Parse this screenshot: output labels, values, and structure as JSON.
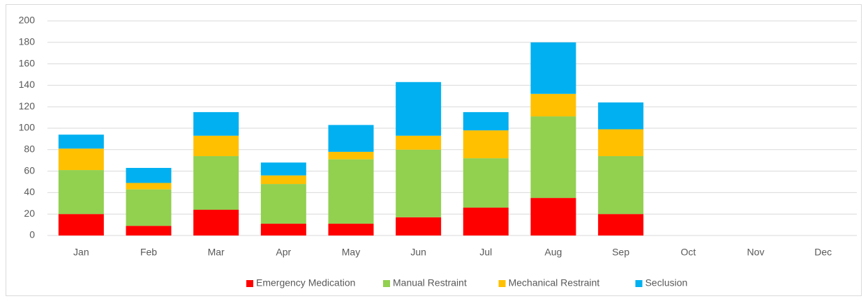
{
  "chart_data": {
    "type": "stacked_bar",
    "categories": [
      "Jan",
      "Feb",
      "Mar",
      "Apr",
      "May",
      "Jun",
      "Jul",
      "Aug",
      "Sep",
      "Oct",
      "Nov",
      "Dec"
    ],
    "series": [
      {
        "name": "Emergency Medication",
        "color": "#ff0000",
        "values": [
          20,
          9,
          24,
          11,
          11,
          17,
          26,
          35,
          20,
          null,
          null,
          null
        ]
      },
      {
        "name": "Manual Restraint",
        "color": "#92d050",
        "values": [
          41,
          34,
          50,
          37,
          60,
          63,
          46,
          76,
          54,
          null,
          null,
          null
        ]
      },
      {
        "name": "Mechanical Restraint",
        "color": "#ffc000",
        "values": [
          20,
          6,
          19,
          8,
          7,
          13,
          26,
          21,
          25,
          null,
          null,
          null
        ]
      },
      {
        "name": "Seclusion",
        "color": "#00b0f0",
        "values": [
          13,
          14,
          22,
          12,
          25,
          50,
          17,
          48,
          25,
          null,
          null,
          null
        ]
      }
    ],
    "ylim": [
      0,
      200
    ],
    "yticks": [
      0,
      20,
      40,
      60,
      80,
      100,
      120,
      140,
      160,
      180,
      200
    ],
    "grid": true,
    "legend": "bottom"
  }
}
